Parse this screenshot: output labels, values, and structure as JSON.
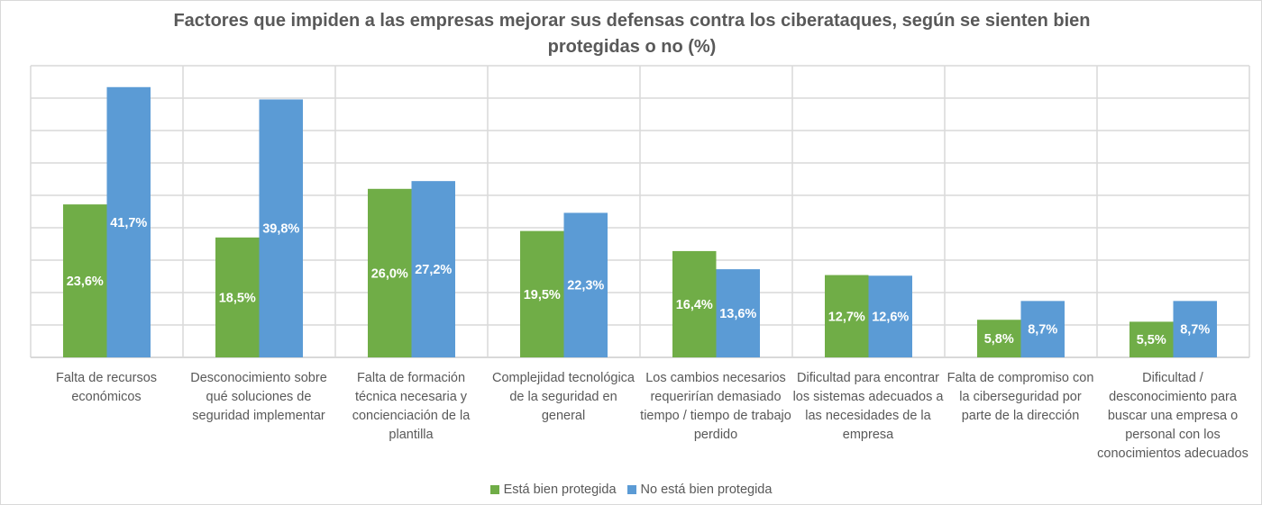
{
  "chart_data": {
    "type": "bar",
    "title": "Factores que impiden a las empresas mejorar sus defensas contra los ciberataques, según se sienten bien protegidas o no (%)",
    "categories": [
      "Falta de recursos económicos",
      "Desconocimiento sobre qué soluciones de seguridad implementar",
      "Falta de formación técnica necesaria y concienciación de la plantilla",
      "Complejidad tecnológica de la seguridad en general",
      "Los cambios necesarios requerirían demasiado tiempo / tiempo de trabajo perdido",
      "Dificultad para encontrar los sistemas adecuados a las necesidades de la empresa",
      "Falta de compromiso con la ciberseguridad por parte de la dirección",
      "Dificultad / desconocimiento para buscar una empresa o personal con los conocimientos adecuados"
    ],
    "series": [
      {
        "name": "Está bien protegida",
        "color": "#70ad47",
        "values": [
          23.6,
          18.5,
          26.0,
          19.5,
          16.4,
          12.7,
          5.8,
          5.5
        ],
        "labels": [
          "23,6%",
          "18,5%",
          "26,0%",
          "19,5%",
          "16,4%",
          "12,7%",
          "5,8%",
          "5,5%"
        ]
      },
      {
        "name": "No está bien protegida",
        "color": "#5b9bd5",
        "values": [
          41.7,
          39.8,
          27.2,
          22.3,
          13.6,
          12.6,
          8.7,
          8.7
        ],
        "labels": [
          "41,7%",
          "39,8%",
          "27,2%",
          "22,3%",
          "13,6%",
          "12,6%",
          "8,7%",
          "8,7%"
        ]
      }
    ],
    "ylim": [
      0,
      45
    ],
    "ytick_step": 5,
    "y_tick_labels_shown": false,
    "grid": true,
    "legend": "bottom"
  }
}
